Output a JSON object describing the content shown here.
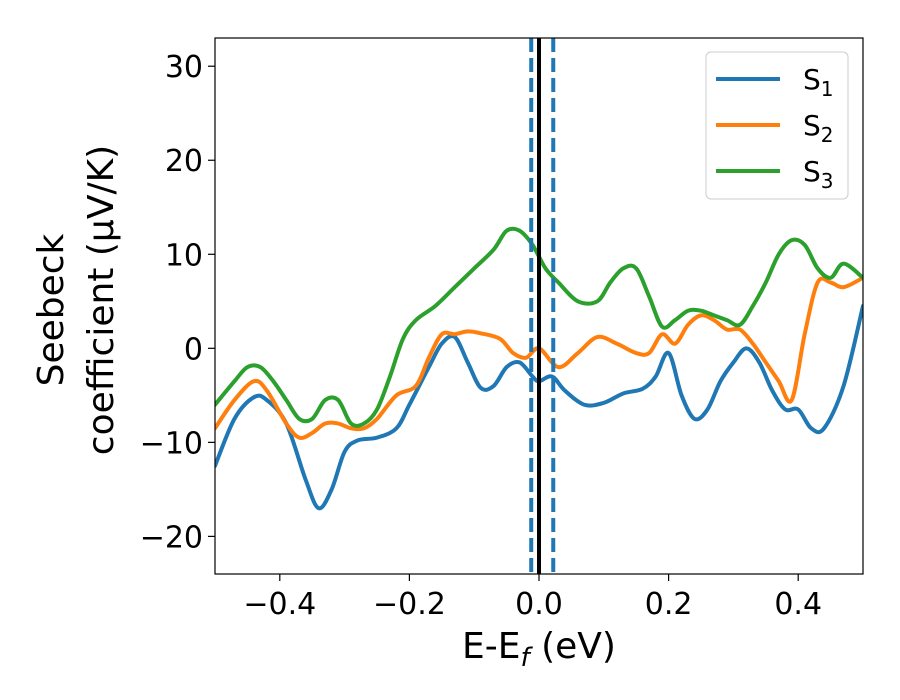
{
  "chart_data": {
    "type": "line",
    "xlabel": "E-E_f (eV)",
    "xlabel_parts": [
      "E-E",
      "f",
      " (eV)"
    ],
    "ylabel_line1": "Seebeck",
    "ylabel_line2": "coefficient  (μV/K)",
    "xlim": [
      -0.5,
      0.5
    ],
    "ylim": [
      -24,
      33
    ],
    "xticks": [
      -0.4,
      -0.2,
      0.0,
      0.2,
      0.4
    ],
    "xtick_labels": [
      "−0.4",
      "−0.2",
      "0.0",
      "0.2",
      "0.4"
    ],
    "yticks": [
      -20,
      -10,
      0,
      10,
      20,
      30
    ],
    "ytick_labels": [
      "−20",
      "−10",
      "0",
      "10",
      "20",
      "30"
    ],
    "grid": false,
    "legend_position": "top-right",
    "vertical_lines": [
      {
        "x": 0.0,
        "style": "solid",
        "color": "#000000"
      },
      {
        "x": -0.012,
        "style": "dashed",
        "color": "#1f77b4"
      },
      {
        "x": 0.022,
        "style": "dashed",
        "color": "#1f77b4"
      }
    ],
    "series": [
      {
        "name": "S_1",
        "name_base": "S",
        "name_sub": "1",
        "color": "#1f77b4",
        "x": [
          -0.5,
          -0.47,
          -0.44,
          -0.42,
          -0.39,
          -0.36,
          -0.34,
          -0.32,
          -0.3,
          -0.28,
          -0.25,
          -0.22,
          -0.2,
          -0.17,
          -0.15,
          -0.13,
          -0.11,
          -0.09,
          -0.07,
          -0.05,
          -0.03,
          -0.01,
          0.0,
          0.02,
          0.04,
          0.07,
          0.1,
          0.13,
          0.16,
          0.18,
          0.2,
          0.22,
          0.24,
          0.26,
          0.28,
          0.3,
          0.32,
          0.34,
          0.36,
          0.38,
          0.4,
          0.42,
          0.44,
          0.47,
          0.5
        ],
        "y": [
          -12.5,
          -7.5,
          -5.2,
          -5.5,
          -8.0,
          -14.0,
          -17.0,
          -15.0,
          -11.0,
          -9.8,
          -9.5,
          -8.5,
          -6.0,
          -2.0,
          0.5,
          1.2,
          -1.5,
          -4.2,
          -4.0,
          -2.0,
          -1.5,
          -3.0,
          -3.5,
          -3.0,
          -4.5,
          -6.0,
          -5.8,
          -4.8,
          -4.3,
          -3.0,
          -0.5,
          -5.0,
          -7.5,
          -6.5,
          -3.5,
          -1.5,
          0.0,
          -1.5,
          -4.5,
          -6.5,
          -6.5,
          -8.5,
          -8.5,
          -4.0,
          4.5
        ]
      },
      {
        "name": "S_2",
        "name_base": "S",
        "name_sub": "2",
        "color": "#ff7f0e",
        "x": [
          -0.5,
          -0.47,
          -0.44,
          -0.42,
          -0.39,
          -0.37,
          -0.35,
          -0.33,
          -0.31,
          -0.29,
          -0.27,
          -0.25,
          -0.22,
          -0.19,
          -0.17,
          -0.15,
          -0.13,
          -0.11,
          -0.09,
          -0.06,
          -0.04,
          -0.02,
          0.0,
          0.03,
          0.06,
          0.09,
          0.12,
          0.15,
          0.17,
          0.19,
          0.21,
          0.23,
          0.25,
          0.27,
          0.29,
          0.31,
          0.33,
          0.35,
          0.37,
          0.39,
          0.41,
          0.43,
          0.45,
          0.47,
          0.5
        ],
        "y": [
          -8.5,
          -5.5,
          -3.5,
          -4.5,
          -8.0,
          -9.5,
          -9.0,
          -8.0,
          -8.0,
          -8.5,
          -8.5,
          -7.5,
          -5.0,
          -4.0,
          -1.0,
          1.5,
          1.5,
          1.8,
          1.6,
          1.0,
          -0.5,
          -1.0,
          0.0,
          -2.0,
          -0.5,
          1.2,
          0.5,
          -0.5,
          -0.5,
          1.5,
          0.5,
          2.5,
          3.5,
          3.0,
          2.0,
          2.0,
          0.5,
          -1.5,
          -3.5,
          -5.5,
          1.5,
          7.0,
          7.0,
          6.5,
          7.5
        ]
      },
      {
        "name": "S_3",
        "name_base": "S",
        "name_sub": "3",
        "color": "#2ca02c",
        "x": [
          -0.5,
          -0.47,
          -0.45,
          -0.43,
          -0.41,
          -0.39,
          -0.37,
          -0.35,
          -0.33,
          -0.31,
          -0.29,
          -0.27,
          -0.25,
          -0.23,
          -0.21,
          -0.19,
          -0.16,
          -0.13,
          -0.1,
          -0.07,
          -0.05,
          -0.03,
          -0.01,
          0.01,
          0.03,
          0.06,
          0.09,
          0.11,
          0.13,
          0.15,
          0.17,
          0.19,
          0.21,
          0.23,
          0.25,
          0.27,
          0.29,
          0.31,
          0.33,
          0.35,
          0.37,
          0.39,
          0.41,
          0.43,
          0.45,
          0.47,
          0.5
        ],
        "y": [
          -6.0,
          -3.5,
          -2.0,
          -2.0,
          -3.5,
          -5.5,
          -7.5,
          -7.5,
          -5.5,
          -5.5,
          -8.0,
          -8.0,
          -6.5,
          -3.0,
          1.0,
          3.0,
          4.5,
          6.5,
          8.5,
          10.5,
          12.5,
          12.5,
          11.0,
          8.5,
          7.0,
          5.0,
          5.0,
          7.0,
          8.5,
          8.5,
          5.5,
          2.3,
          3.0,
          4.0,
          4.0,
          3.5,
          3.0,
          2.5,
          4.5,
          7.0,
          10.0,
          11.5,
          11.0,
          8.5,
          7.5,
          9.0,
          7.5
        ]
      }
    ]
  }
}
